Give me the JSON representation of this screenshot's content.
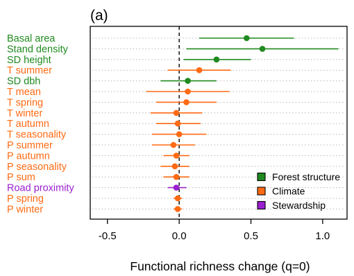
{
  "chart_data": {
    "type": "forest",
    "panel_label": "(a)",
    "xlabel": "Functional richness change (q=0)",
    "xlim": [
      -0.62,
      1.17
    ],
    "x_ticks": [
      -0.5,
      0.0,
      0.5,
      1.0
    ],
    "x_tick_labels": [
      "-0.5",
      "0.0",
      "0.5",
      "1.0"
    ],
    "reference_line": 0,
    "grid": "dotted horizontal per row",
    "legend_position": "bottom-right",
    "groups": [
      {
        "name": "Forest structure",
        "color": "#1f8a1f"
      },
      {
        "name": "Climate",
        "color": "#ff6a13"
      },
      {
        "name": "Stewardship",
        "color": "#9a1fd0"
      }
    ],
    "rows": [
      {
        "label": "Basal area",
        "group": "Forest structure",
        "estimate": 0.47,
        "lower": 0.14,
        "upper": 0.8
      },
      {
        "label": "Stand density",
        "group": "Forest structure",
        "estimate": 0.58,
        "lower": 0.05,
        "upper": 1.11
      },
      {
        "label": "SD height",
        "group": "Forest structure",
        "estimate": 0.26,
        "lower": 0.03,
        "upper": 0.5
      },
      {
        "label": "T summer",
        "group": "Climate",
        "estimate": 0.14,
        "lower": -0.08,
        "upper": 0.36
      },
      {
        "label": "SD dbh",
        "group": "Forest structure",
        "estimate": 0.06,
        "lower": -0.13,
        "upper": 0.26
      },
      {
        "label": "T mean",
        "group": "Climate",
        "estimate": 0.06,
        "lower": -0.23,
        "upper": 0.35
      },
      {
        "label": "T spring",
        "group": "Climate",
        "estimate": 0.05,
        "lower": -0.16,
        "upper": 0.26
      },
      {
        "label": "T winter",
        "group": "Climate",
        "estimate": -0.02,
        "lower": -0.2,
        "upper": 0.16
      },
      {
        "label": "T autumn",
        "group": "Climate",
        "estimate": -0.01,
        "lower": -0.16,
        "upper": 0.15
      },
      {
        "label": "T seasonality",
        "group": "Climate",
        "estimate": 0.0,
        "lower": -0.19,
        "upper": 0.19
      },
      {
        "label": "P summer",
        "group": "Climate",
        "estimate": -0.04,
        "lower": -0.19,
        "upper": 0.11
      },
      {
        "label": "P autumn",
        "group": "Climate",
        "estimate": -0.02,
        "lower": -0.11,
        "upper": 0.07
      },
      {
        "label": "P seasonality",
        "group": "Climate",
        "estimate": -0.03,
        "lower": -0.13,
        "upper": 0.07
      },
      {
        "label": "P sum",
        "group": "Climate",
        "estimate": -0.02,
        "lower": -0.11,
        "upper": 0.07
      },
      {
        "label": "Road proximity",
        "group": "Stewardship",
        "estimate": -0.02,
        "lower": -0.08,
        "upper": 0.05
      },
      {
        "label": "P spring",
        "group": "Climate",
        "estimate": -0.01,
        "lower": -0.04,
        "upper": 0.02
      },
      {
        "label": "P winter",
        "group": "Climate",
        "estimate": -0.01,
        "lower": -0.04,
        "upper": 0.02
      }
    ]
  }
}
